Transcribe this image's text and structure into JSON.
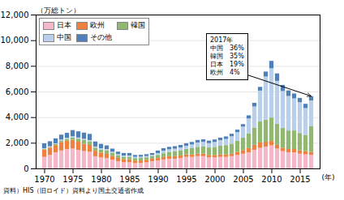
{
  "chart_data": {
    "type": "bar",
    "stacked": true,
    "ylabel": "（万総トン）",
    "xlabel": "(年)",
    "caption": "資料）HIS（旧ロイド）資料より国土交通省作成",
    "annotations": [
      {
        "text": "2017年\n中国　36%\n韓国　35%\n日本　19%\n欧州　4%",
        "x": 2017
      }
    ],
    "x": [
      1970,
      1971,
      1972,
      1973,
      1974,
      1975,
      1976,
      1977,
      1978,
      1979,
      1980,
      1981,
      1982,
      1983,
      1984,
      1985,
      1986,
      1987,
      1988,
      1989,
      1990,
      1991,
      1992,
      1993,
      1994,
      1995,
      1996,
      1997,
      1998,
      1999,
      2000,
      2001,
      2002,
      2003,
      2004,
      2005,
      2006,
      2007,
      2008,
      2009,
      2010,
      2011,
      2012,
      2013,
      2014,
      2015,
      2016,
      2017
    ],
    "series": [
      {
        "name": "日本",
        "color": "#f5b8c8",
        "values": [
          900,
          1050,
          1250,
          1400,
          1500,
          1550,
          1450,
          1350,
          1300,
          950,
          850,
          800,
          680,
          560,
          480,
          480,
          420,
          430,
          480,
          570,
          620,
          700,
          760,
          760,
          810,
          900,
          900,
          960,
          960,
          860,
          860,
          900,
          900,
          960,
          1050,
          1150,
          1250,
          1450,
          1600,
          1700,
          1800,
          1550,
          1350,
          1250,
          1250,
          1150,
          1100,
          1050
        ]
      },
      {
        "name": "欧州",
        "color": "#f08040",
        "values": [
          580,
          570,
          570,
          660,
          660,
          680,
          630,
          580,
          530,
          430,
          390,
          340,
          290,
          265,
          240,
          240,
          195,
          195,
          195,
          195,
          195,
          195,
          195,
          195,
          195,
          195,
          195,
          195,
          195,
          195,
          195,
          195,
          195,
          195,
          240,
          285,
          340,
          390,
          430,
          380,
          340,
          285,
          265,
          265,
          265,
          265,
          245,
          235
        ]
      },
      {
        "name": "韓国",
        "color": "#90b870",
        "values": [
          50,
          60,
          75,
          115,
          145,
          195,
          240,
          290,
          290,
          240,
          240,
          270,
          240,
          195,
          195,
          195,
          195,
          195,
          195,
          195,
          240,
          290,
          340,
          390,
          390,
          435,
          485,
          530,
          580,
          580,
          625,
          675,
          725,
          775,
          865,
          960,
          1155,
          1350,
          1640,
          1730,
          1830,
          1635,
          1540,
          1445,
          1445,
          1350,
          1250,
          2000
        ]
      },
      {
        "name": "中国",
        "color": "#b8d0ea",
        "values": [
          45,
          55,
          65,
          75,
          85,
          85,
          95,
          95,
          95,
          95,
          95,
          95,
          95,
          95,
          95,
          95,
          95,
          95,
          95,
          95,
          145,
          195,
          195,
          195,
          240,
          240,
          290,
          340,
          340,
          340,
          385,
          435,
          480,
          580,
          675,
          865,
          1155,
          1640,
          2400,
          3360,
          3840,
          3360,
          2880,
          2690,
          2500,
          2400,
          2110,
          2020
        ]
      },
      {
        "name": "その他",
        "color": "#5080b8",
        "values": [
          385,
          385,
          385,
          385,
          385,
          480,
          480,
          480,
          480,
          385,
          340,
          290,
          240,
          195,
          195,
          195,
          145,
          145,
          145,
          145,
          195,
          195,
          195,
          195,
          195,
          195,
          195,
          195,
          195,
          195,
          195,
          195,
          195,
          195,
          195,
          195,
          240,
          290,
          290,
          385,
          580,
          580,
          480,
          435,
          385,
          335,
          335,
          335
        ]
      }
    ],
    "xlim": [
      1968.5,
      2018.5
    ],
    "xticks": [
      1970,
      1975,
      1980,
      1985,
      1990,
      1995,
      2000,
      2005,
      2010,
      2015
    ],
    "ylim": [
      0,
      12000
    ],
    "yticks": [
      0,
      {
        "value": 2000,
        "label": "2,000"
      },
      {
        "value": 4000,
        "label": "4,000"
      },
      {
        "value": 6000,
        "label": "6,000"
      },
      {
        "value": 8000,
        "label": "8,000"
      },
      {
        "value": 10000,
        "label": "10,000"
      },
      {
        "value": 12000,
        "label": "12,000"
      }
    ],
    "grid": true,
    "legend": "upper left"
  }
}
